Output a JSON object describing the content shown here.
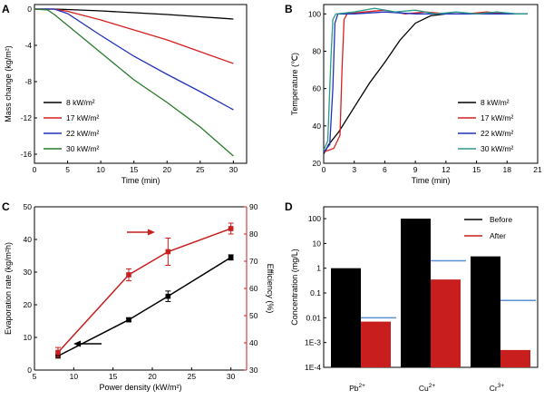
{
  "chart_data": [
    {
      "panel": "A",
      "type": "line",
      "xlabel": "Time (min)",
      "ylabel": "Mass change (kg/m²)",
      "xlim": [
        0,
        32
      ],
      "ylim": [
        -17,
        0.5
      ],
      "xticks": [
        "0",
        "5",
        "10",
        "15",
        "20",
        "25",
        "30"
      ],
      "yticks": [
        "0",
        "-4",
        "-8",
        "-12",
        "-16"
      ],
      "legend_position": "bottom-left",
      "series": [
        {
          "name": "8 kW/m²",
          "color": "#000000",
          "x": [
            0,
            3,
            5,
            10,
            15,
            20,
            25,
            30
          ],
          "y": [
            0,
            0,
            -0.05,
            -0.2,
            -0.4,
            -0.6,
            -0.85,
            -1.1
          ]
        },
        {
          "name": "17 kW/m²",
          "color": "#d62020",
          "x": [
            0,
            3,
            5,
            10,
            15,
            20,
            25,
            30
          ],
          "y": [
            0,
            0,
            -0.25,
            -1.2,
            -2.3,
            -3.4,
            -4.7,
            -6.0
          ]
        },
        {
          "name": "22 kW/m²",
          "color": "#2233bb",
          "x": [
            0,
            3,
            5,
            10,
            15,
            20,
            25,
            30
          ],
          "y": [
            0,
            0,
            -0.5,
            -2.9,
            -5.2,
            -7.2,
            -9.1,
            -11.1
          ]
        },
        {
          "name": "30 kW/m²",
          "color": "#2a7a2a",
          "x": [
            0,
            2,
            3,
            5,
            10,
            15,
            20,
            25,
            30
          ],
          "y": [
            0,
            -0.1,
            -0.6,
            -1.8,
            -4.8,
            -7.8,
            -10.3,
            -13.0,
            -16.2
          ]
        }
      ]
    },
    {
      "panel": "B",
      "type": "line",
      "xlabel": "Time (min)",
      "ylabel": "Temperature (℃)",
      "xlim": [
        0,
        21
      ],
      "ylim": [
        20,
        105
      ],
      "xticks": [
        "0",
        "3",
        "6",
        "9",
        "12",
        "15",
        "18",
        "21"
      ],
      "yticks": [
        "20",
        "40",
        "60",
        "80",
        "100"
      ],
      "legend_position": "bottom-right",
      "series": [
        {
          "name": "8 kW/m²",
          "color": "#000000",
          "x": [
            0,
            0.5,
            1.5,
            3,
            4.5,
            6,
            7.5,
            9,
            10.5,
            12,
            14,
            16,
            18,
            20
          ],
          "y": [
            25,
            30,
            37,
            50,
            63,
            74,
            86,
            95,
            99,
            100,
            100,
            100,
            100,
            100
          ]
        },
        {
          "name": "17 kW/m²",
          "color": "#d62020",
          "x": [
            0,
            1,
            1.6,
            1.8,
            2.0,
            2.3,
            4,
            6,
            8,
            10,
            12,
            14,
            16,
            18,
            20
          ],
          "y": [
            26,
            28,
            35,
            70,
            97,
            100,
            101,
            102,
            100,
            101,
            100,
            100,
            101,
            100,
            100
          ]
        },
        {
          "name": "22 kW/m²",
          "color": "#2233bb",
          "x": [
            0,
            0.6,
            0.9,
            1.1,
            1.4,
            3,
            6,
            9,
            12,
            15,
            18,
            20
          ],
          "y": [
            26,
            30,
            60,
            95,
            100,
            100,
            101,
            100,
            100,
            100,
            100,
            100
          ]
        },
        {
          "name": "30 kW/m²",
          "color": "#2a9a8a",
          "x": [
            0,
            0.4,
            0.7,
            0.9,
            1.2,
            3,
            5,
            7,
            9,
            11,
            13,
            15,
            17,
            19,
            20
          ],
          "y": [
            27,
            32,
            75,
            97,
            100,
            101,
            103,
            101,
            102,
            100,
            101,
            100,
            101,
            100,
            100
          ]
        }
      ]
    },
    {
      "panel": "C",
      "type": "line",
      "xlabel": "Power density (kW/m²)",
      "ylabel": "Evaporation rate (kg/m²h)",
      "ylabel_right": "Efficiency (%)",
      "xlim": [
        5,
        32
      ],
      "ylim": [
        0,
        50
      ],
      "ylim_right": [
        30,
        90
      ],
      "xticks": [
        "5",
        "10",
        "15",
        "20",
        "25",
        "30"
      ],
      "yticks": [
        "0",
        "10",
        "20",
        "30",
        "40",
        "50"
      ],
      "yticks_right": [
        "30",
        "40",
        "50",
        "60",
        "70",
        "80",
        "90"
      ],
      "series": [
        {
          "name": "Evaporation rate",
          "axis": "left",
          "color": "#000000",
          "x": [
            8,
            17,
            22,
            30
          ],
          "y": [
            4.3,
            15.4,
            22.6,
            34.5
          ],
          "err": [
            0.4,
            0.6,
            1.6,
            0.8
          ]
        },
        {
          "name": "Efficiency",
          "axis": "right",
          "color": "#c81e1e",
          "x": [
            8,
            17,
            22,
            30
          ],
          "y": [
            36.5,
            65.0,
            73.5,
            82.0
          ],
          "err": [
            1.8,
            2.2,
            5.0,
            2.0
          ]
        }
      ]
    },
    {
      "panel": "D",
      "type": "bar",
      "ylabel": "Concentration (mg/L)",
      "yscale": "log",
      "ylim": [
        0.0001,
        300
      ],
      "yticks": [
        "1E-4",
        "1E-3",
        "0.01",
        "0.1",
        "1",
        "10",
        "100"
      ],
      "categories": [
        "Pb2+",
        "Cu2+",
        "Cr3+"
      ],
      "category_labels": [
        {
          "base": "Pb",
          "sup": "2+"
        },
        {
          "base": "Cu",
          "sup": "2+"
        },
        {
          "base": "Cr",
          "sup": "3+"
        }
      ],
      "legend_position": "top-right",
      "series": [
        {
          "name": "Before",
          "color": "#000000",
          "values": [
            1.0,
            100.0,
            3.0
          ]
        },
        {
          "name": "After",
          "color": "#c81e1e",
          "values": [
            0.007,
            0.35,
            0.0005
          ]
        }
      ],
      "reference_color": "#5b8fd8",
      "reference_lines": [
        0.01,
        2.0,
        0.05
      ]
    }
  ]
}
